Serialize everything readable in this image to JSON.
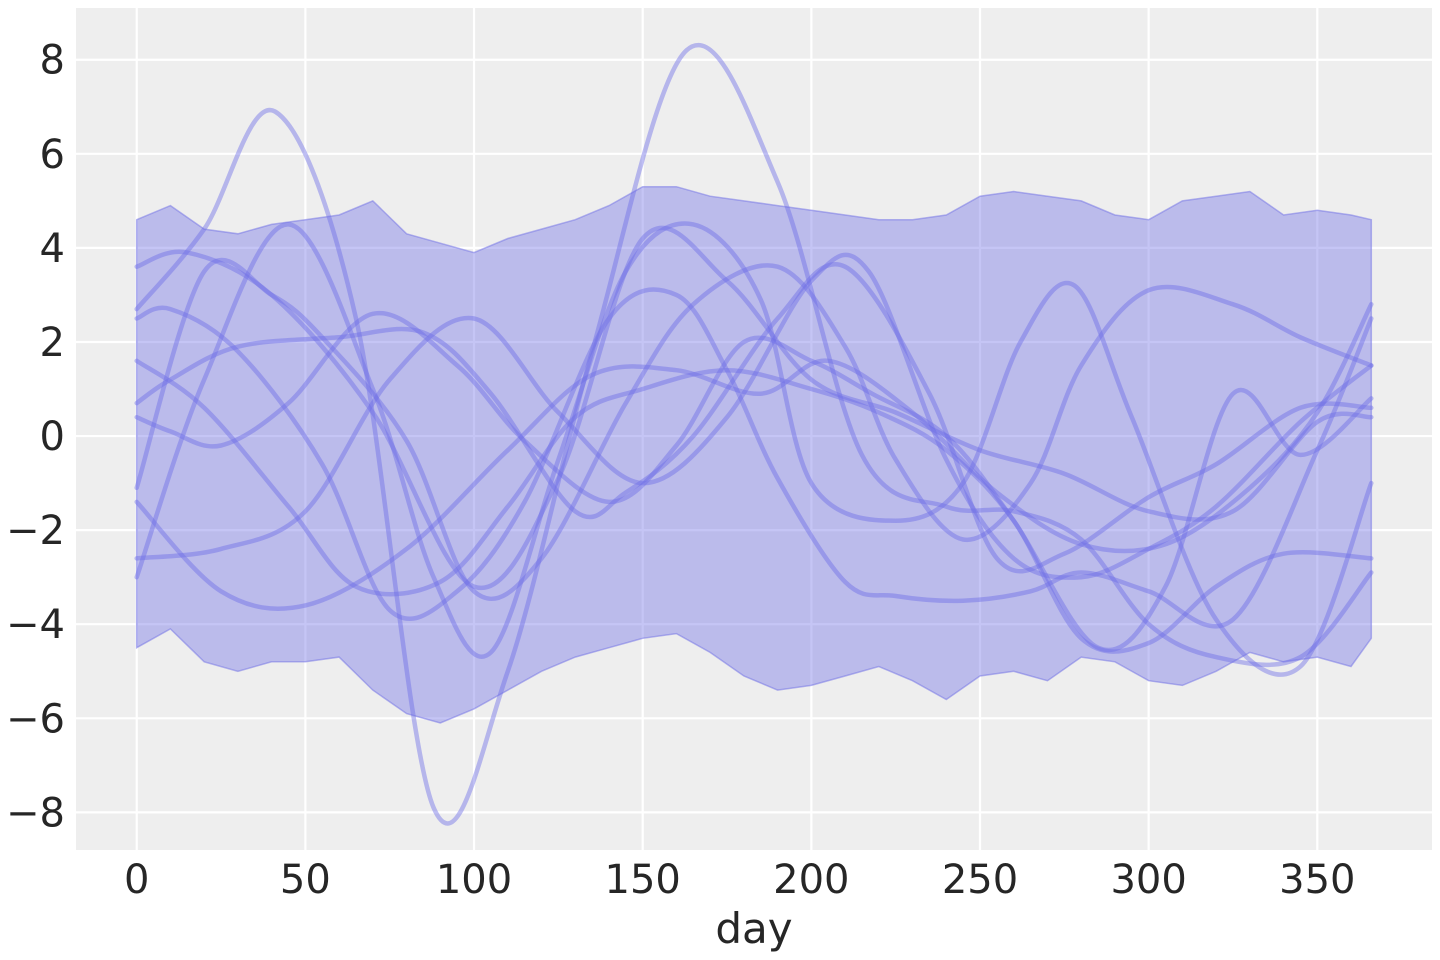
{
  "chart_data": {
    "type": "line",
    "title": "",
    "xlabel": "day",
    "ylabel": "",
    "xlim": [
      -18,
      384
    ],
    "ylim": [
      -8.8,
      9.1
    ],
    "xticks": [
      0,
      50,
      100,
      150,
      200,
      250,
      300,
      350
    ],
    "xtick_labels": [
      "0",
      "50",
      "100",
      "150",
      "200",
      "250",
      "300",
      "350"
    ],
    "yticks": [
      -8,
      -6,
      -4,
      -2,
      0,
      2,
      4,
      6,
      8
    ],
    "ytick_labels": [
      "−8",
      "−6",
      "−4",
      "−2",
      "0",
      "2",
      "4",
      "6",
      "8"
    ],
    "grid": true,
    "band": {
      "x": [
        0,
        10,
        20,
        30,
        40,
        50,
        60,
        70,
        80,
        90,
        100,
        110,
        120,
        130,
        140,
        150,
        160,
        170,
        180,
        190,
        200,
        210,
        220,
        230,
        240,
        250,
        260,
        270,
        280,
        290,
        300,
        310,
        320,
        330,
        340,
        350,
        360,
        366
      ],
      "upper": [
        4.6,
        4.9,
        4.4,
        4.3,
        4.5,
        4.6,
        4.7,
        5.0,
        4.3,
        4.1,
        3.9,
        4.2,
        4.4,
        4.6,
        4.9,
        5.3,
        5.3,
        5.1,
        5.0,
        4.9,
        4.8,
        4.7,
        4.6,
        4.6,
        4.7,
        5.1,
        5.2,
        5.1,
        5.0,
        4.7,
        4.6,
        5.0,
        5.1,
        5.2,
        4.7,
        4.8,
        4.7,
        4.6
      ],
      "lower": [
        -4.5,
        -4.1,
        -4.8,
        -5.0,
        -4.8,
        -4.8,
        -4.7,
        -5.4,
        -5.9,
        -6.1,
        -5.8,
        -5.4,
        -5.0,
        -4.7,
        -4.5,
        -4.3,
        -4.2,
        -4.6,
        -5.1,
        -5.4,
        -5.3,
        -5.1,
        -4.9,
        -5.2,
        -5.6,
        -5.1,
        -5.0,
        -5.2,
        -4.7,
        -4.8,
        -5.2,
        -5.3,
        -5.0,
        -4.6,
        -4.8,
        -4.7,
        -4.9,
        -4.3
      ],
      "color": "#6f6fe6"
    },
    "series": [
      {
        "x": [
          0,
          20,
          41,
          65,
          88,
          110,
          135,
          163,
          190,
          215,
          240,
          260,
          280,
          300,
          320,
          345,
          366
        ],
        "values": [
          2.7,
          4.4,
          6.9,
          2.5,
          -7.9,
          -5.0,
          1.8,
          8.2,
          5.4,
          -0.4,
          -1.5,
          -1.6,
          -2.2,
          -4.0,
          -4.7,
          -4.7,
          -2.9
        ],
        "color": "#6f6fe6"
      },
      {
        "x": [
          0,
          20,
          45,
          70,
          88,
          105,
          125,
          145,
          165,
          185,
          200,
          225,
          245,
          262,
          278,
          295,
          320,
          345,
          366
        ],
        "values": [
          -3.0,
          1.2,
          4.5,
          1.0,
          -3.0,
          -4.6,
          -0.5,
          3.5,
          4.5,
          2.9,
          -1.0,
          -1.8,
          -1.0,
          2.0,
          3.2,
          0.4,
          -3.9,
          -4.9,
          -1.0
        ],
        "color": "#6f6fe6"
      },
      {
        "x": [
          0,
          15,
          40,
          70,
          100,
          125,
          150,
          175,
          200,
          225,
          250,
          275,
          300,
          325,
          350,
          366
        ],
        "values": [
          3.6,
          3.9,
          3.0,
          0.5,
          -3.2,
          -0.9,
          4.2,
          3.3,
          1.2,
          0.5,
          -0.3,
          -0.8,
          -1.6,
          -1.6,
          0.3,
          0.4
        ],
        "color": "#6f6fe6"
      },
      {
        "x": [
          0,
          10,
          30,
          55,
          75,
          95,
          115,
          140,
          160,
          175,
          190,
          210,
          225,
          245,
          265,
          280,
          300,
          325,
          350,
          366
        ],
        "values": [
          2.5,
          2.7,
          1.8,
          -0.6,
          -3.7,
          -3.3,
          -1.4,
          2.5,
          3.0,
          1.4,
          -0.9,
          -3.1,
          -3.4,
          -3.5,
          -3.3,
          -2.9,
          -3.3,
          -3.9,
          -0.3,
          2.5
        ],
        "color": "#6f6fe6"
      },
      {
        "x": [
          0,
          20,
          45,
          65,
          90,
          110,
          130,
          150,
          175,
          200,
          220,
          240,
          260,
          280,
          300,
          320,
          340,
          366
        ],
        "values": [
          1.6,
          0.6,
          -1.5,
          -3.2,
          -3.1,
          -1.5,
          0.4,
          1.0,
          1.4,
          1.0,
          0.5,
          -0.3,
          -1.8,
          -4.3,
          -4.4,
          -3.2,
          -2.5,
          -2.6
        ],
        "color": "#6f6fe6"
      },
      {
        "x": [
          0,
          25,
          50,
          80,
          110,
          135,
          160,
          185,
          205,
          230,
          255,
          280,
          305,
          330,
          350,
          366
        ],
        "values": [
          -1.4,
          -3.3,
          -3.6,
          -2.4,
          -0.3,
          1.3,
          1.4,
          0.9,
          1.6,
          0.5,
          -1.2,
          -2.3,
          -2.3,
          -1.1,
          0.5,
          2.8
        ],
        "color": "#6f6fe6"
      },
      {
        "x": [
          0,
          10,
          30,
          60,
          85,
          105,
          130,
          145,
          165,
          190,
          210,
          235,
          255,
          275,
          300,
          320,
          345,
          366
        ],
        "values": [
          0.7,
          1.2,
          1.9,
          2.1,
          2.2,
          0.9,
          -1.6,
          -1.2,
          0.0,
          2.5,
          3.6,
          0.9,
          -2.6,
          -2.5,
          -1.3,
          -0.6,
          0.6,
          0.6
        ],
        "color": "#6f6fe6"
      },
      {
        "x": [
          0,
          25,
          50,
          75,
          100,
          125,
          150,
          175,
          200,
          217,
          240,
          260,
          280,
          300,
          320,
          345,
          366
        ],
        "values": [
          -2.6,
          -2.4,
          -1.6,
          1.2,
          2.5,
          0.5,
          -1.0,
          0.4,
          3.3,
          3.5,
          -0.5,
          -2.6,
          -3.0,
          -2.4,
          -1.5,
          0.3,
          1.5
        ],
        "color": "#6f6fe6"
      },
      {
        "x": [
          0,
          20,
          40,
          55,
          80,
          100,
          120,
          145,
          165,
          190,
          210,
          225,
          245,
          265,
          280,
          300,
          325,
          345,
          366
        ],
        "values": [
          -1.1,
          3.5,
          3.0,
          2.1,
          -0.1,
          -3.3,
          -2.6,
          0.7,
          2.8,
          3.6,
          1.9,
          -0.5,
          -2.2,
          -1.0,
          1.5,
          3.1,
          2.8,
          2.1,
          1.5
        ],
        "color": "#6f6fe6"
      },
      {
        "x": [
          0,
          10,
          25,
          45,
          70,
          95,
          115,
          140,
          160,
          180,
          200,
          218,
          240,
          260,
          285,
          305,
          325,
          345,
          366
        ],
        "values": [
          0.4,
          0.1,
          -0.2,
          0.7,
          2.6,
          1.5,
          -0.1,
          -1.4,
          -0.2,
          2.0,
          1.6,
          0.9,
          0.0,
          -1.8,
          -4.5,
          -3.2,
          0.9,
          -0.4,
          0.8
        ],
        "color": "#6f6fe6"
      }
    ]
  }
}
